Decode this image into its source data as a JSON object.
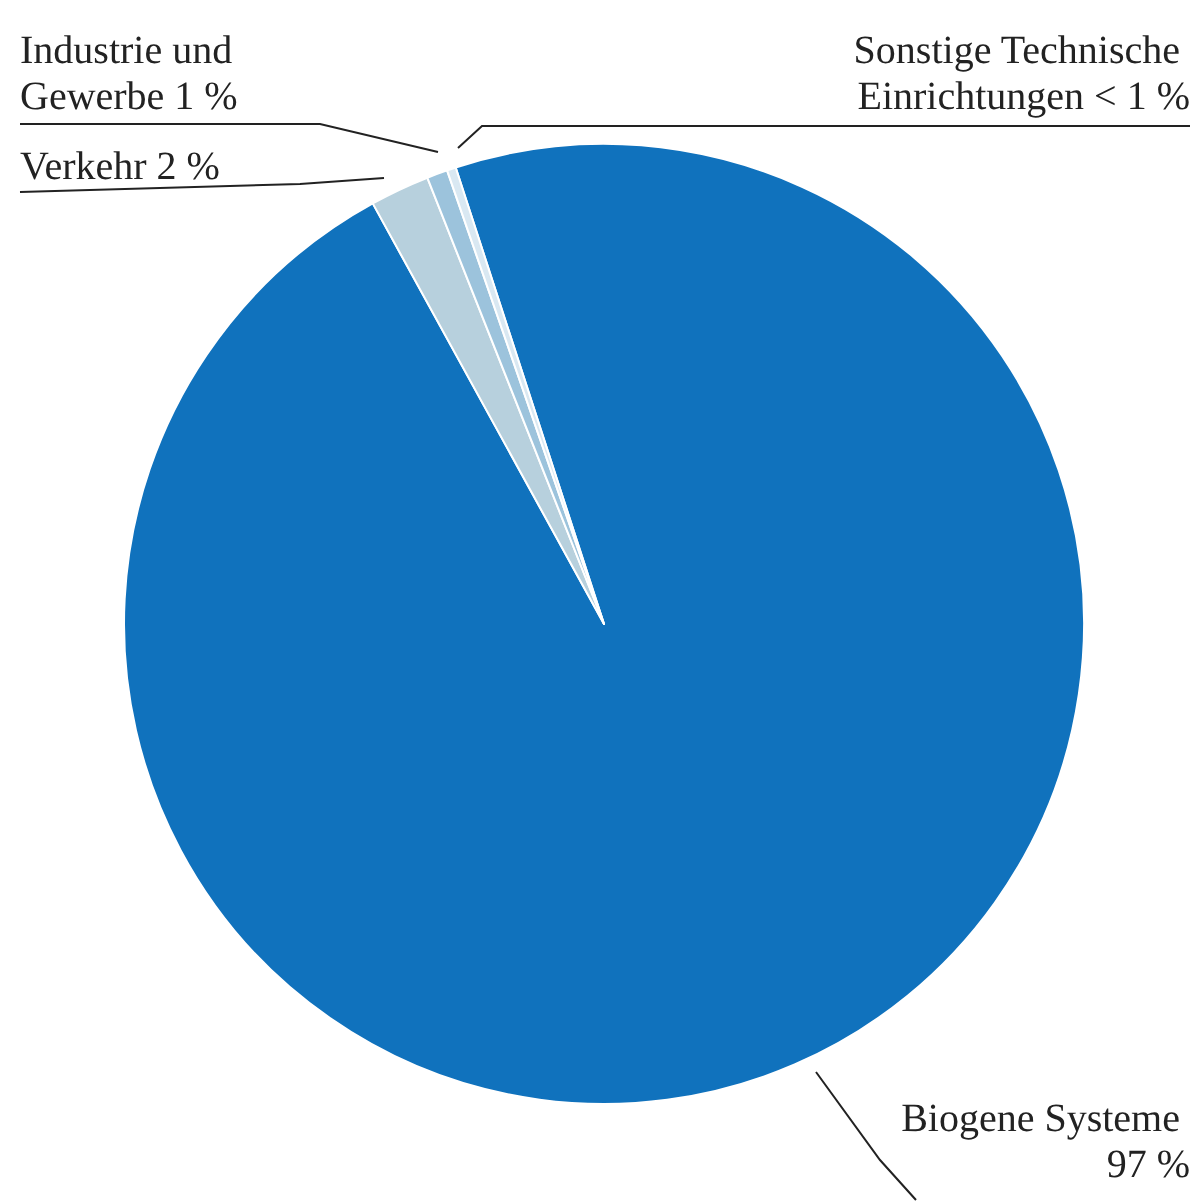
{
  "chart_data": {
    "type": "pie",
    "categories": [
      "Biogene Systeme",
      "Verkehr",
      "Industrie und Gewerbe",
      "Sonstige Technische Einrichtungen"
    ],
    "values": [
      97,
      2,
      0.7,
      0.3
    ],
    "value_labels": [
      "97 %",
      "2 %",
      "1 %",
      "< 1 %"
    ],
    "colors": [
      "#1072bd",
      "#b7d0dd",
      "#9cc3dc",
      "#d9e8f2"
    ],
    "legend": false
  }
}
